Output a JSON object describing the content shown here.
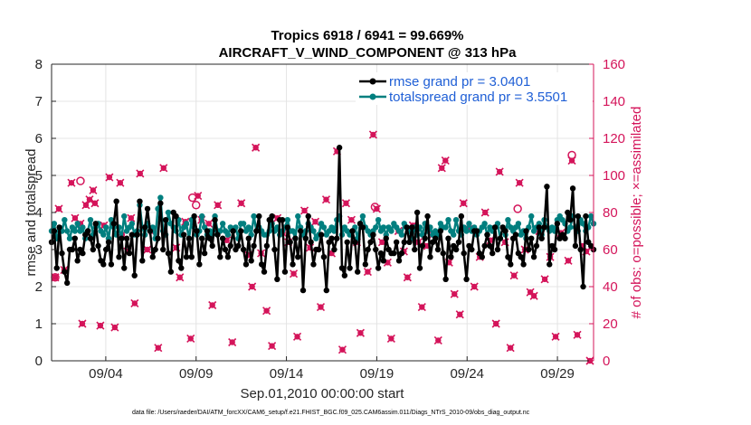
{
  "chart_data": {
    "type": "line",
    "title": "Tropics 6918 / 6941 = 99.669%",
    "subtitle": "AIRCRAFT_V_WIND_COMPONENT @ 313 hPa",
    "xlabel": "Sep.01,2010 00:00:00 start",
    "ylabel": "rmse and totalspread",
    "ylabel_right": "# of obs: o=possible; ×=assimilated",
    "xlim": [
      1,
      31
    ],
    "ylim": [
      0,
      8
    ],
    "ylim_right": [
      0,
      160
    ],
    "x_ticks": [
      4,
      9,
      14,
      19,
      24,
      29
    ],
    "x_tick_labels": [
      "09/04",
      "09/09",
      "09/14",
      "09/19",
      "09/24",
      "09/29"
    ],
    "y_ticks": [
      "0",
      "1",
      "2",
      "3",
      "4",
      "5",
      "6",
      "7",
      "8"
    ],
    "y_ticks_right": [
      "0",
      "20",
      "40",
      "60",
      "80",
      "100",
      "120",
      "140",
      "160"
    ],
    "legend": [
      {
        "name": "rmse grand pr = 3.0401",
        "color": "#000000"
      },
      {
        "name": "totalspread grand pr = 3.5501",
        "color": "#007f7f"
      }
    ],
    "footnote": "data file: /Users/raeder/DAI/ATM_forcXX/CAM6_setup/f.e21.FHIST_BGC.f09_025.CAM6assim.011/Diags_NTrS_2010-09/obs_diag_output.nc",
    "rmse": [
      3.2,
      3.5,
      2.5,
      3.6,
      2.9,
      2.4,
      2.1,
      3.0,
      3.0,
      3.3,
      2.7,
      3.0,
      2.9,
      3.4,
      3.5,
      3.3,
      3.0,
      3.7,
      3.1,
      2.7,
      2.6,
      3.0,
      3.2,
      2.6,
      3.7,
      4.3,
      2.8,
      3.3,
      2.5,
      3.3,
      2.9,
      3.4,
      2.3,
      3.4,
      4.3,
      2.7,
      3.6,
      4.1,
      3.5,
      2.8,
      3.0,
      3.3,
      3.4,
      3.0,
      3.8,
      2.9,
      2.4,
      4.0,
      3.9,
      2.7,
      2.5,
      3.4,
      2.8,
      3.3,
      2.8,
      3.9,
      3.5,
      2.6,
      3.3,
      2.9,
      3.5,
      3.3,
      3.1,
      3.8,
      3.4,
      2.8,
      3.3,
      3.0,
      2.8,
      3.1,
      3.5,
      3.0,
      3.1,
      3.5,
      3.0,
      2.6,
      3.3,
      2.7,
      3.1,
      3.5,
      3.9,
      2.6,
      2.4,
      3.1,
      3.8,
      3.9,
      3.0,
      2.2,
      3.8,
      3.8,
      2.4,
      3.6,
      3.2,
      2.6,
      3.3,
      2.8,
      3.5,
      1.9,
      3.3,
      3.9,
      3.2,
      2.6,
      3.0,
      3.0,
      3.4,
      2.8,
      1.9,
      3.2,
      3.3,
      3.0,
      3.3,
      3.1,
      2.5,
      2.3,
      3.2,
      2.5,
      3.5,
      3.2,
      2.4,
      3.7,
      3.6,
      2.6,
      3.0,
      3.2,
      3.4,
      3.0,
      2.5,
      2.9,
      2.7,
      3.3,
      3.0,
      2.9,
      2.9,
      3.2,
      2.7,
      2.9,
      3.2,
      3.6,
      3.2,
      3.6,
      3.0,
      4.0,
      2.5,
      3.1,
      3.3,
      3.9,
      2.8,
      3.2,
      3.3,
      3.0,
      3.5,
      2.9,
      2.2,
      3.3,
      2.8,
      3.1,
      3.0,
      3.2,
      3.9,
      2.9,
      2.2,
      3.1,
      3.0,
      3.5,
      3.5,
      2.9,
      2.8,
      3.1,
      3.4,
      3.1,
      2.9,
      3.6,
      3.0,
      3.3,
      3.6,
      3.5,
      2.8,
      2.6,
      3.3,
      3.4,
      2.9,
      2.8,
      2.6,
      3.5,
      3.0,
      3.3,
      2.8,
      3.1,
      3.6,
      3.3,
      3.6,
      4.7,
      2.6,
      3.1,
      3.0,
      3.7,
      3.3,
      3.4,
      3.3,
      4.0,
      3.8,
      3.4,
      3.1,
      3.9,
      3.0,
      2.0,
      3.9,
      3.2,
      3.1,
      3.0
    ],
    "totalspread": [
      3.5,
      3.7,
      3.3,
      3.5,
      3.5,
      3.8,
      3.5,
      3.3,
      3.6,
      3.5,
      3.7,
      3.5,
      3.6,
      3.3,
      3.5,
      3.8,
      3.4,
      3.6,
      3.7,
      3.5,
      3.4,
      3.6,
      3.3,
      3.8,
      3.6,
      3.4,
      3.6,
      3.3,
      3.9,
      3.5,
      3.6,
      3.7,
      3.4,
      3.5,
      4.2,
      3.6,
      3.4,
      3.7,
      3.5,
      3.6,
      3.3,
      4.1,
      3.6,
      3.5,
      3.4,
      4.0,
      3.7,
      3.6,
      3.5,
      3.8,
      3.4,
      3.6,
      3.7,
      3.3,
      3.8,
      3.6,
      3.4,
      3.5,
      3.9,
      3.6,
      3.4,
      3.5,
      3.4,
      3.9,
      3.5,
      3.5,
      3.7,
      3.5,
      3.4,
      3.6,
      3.5,
      3.6,
      3.3,
      3.7,
      3.7,
      3.5,
      3.6,
      3.4,
      3.9,
      3.5,
      3.6,
      3.5,
      3.4,
      3.4,
      3.5,
      3.7,
      3.5,
      3.6,
      3.4,
      3.5,
      3.6,
      3.8,
      3.5,
      3.5,
      3.3,
      3.9,
      3.6,
      3.4,
      3.5,
      3.7,
      3.6,
      3.5,
      3.3,
      3.4,
      3.7,
      3.6,
      3.4,
      3.5,
      3.6,
      3.5,
      3.8,
      3.7,
      3.4,
      3.6,
      3.5,
      3.4,
      3.5,
      3.6,
      3.3,
      3.7,
      3.9,
      3.6,
      3.5,
      3.4,
      3.5,
      3.6,
      3.8,
      3.5,
      3.6,
      3.4,
      3.6,
      3.5,
      3.7,
      3.6,
      3.5,
      3.4,
      3.7,
      3.6,
      3.5,
      3.3,
      3.6,
      3.4,
      3.6,
      3.4,
      3.7,
      3.5,
      3.6,
      3.4,
      3.5,
      3.4,
      3.7,
      3.6,
      3.6,
      3.8,
      3.5,
      3.4,
      3.8,
      3.5,
      3.4,
      3.6,
      3.5,
      3.7,
      3.5,
      3.6,
      3.4,
      3.5,
      3.6,
      3.7,
      3.4,
      3.6,
      3.5,
      3.6,
      3.7,
      3.3,
      3.6,
      3.4,
      3.8,
      3.6,
      3.5,
      3.6,
      3.7,
      3.4,
      3.5,
      3.3,
      3.6,
      3.9,
      3.5,
      3.6,
      3.7,
      3.4,
      3.8,
      3.6,
      3.5,
      3.6,
      3.5,
      3.8,
      3.9,
      3.8,
      3.7,
      3.5,
      3.6,
      3.4,
      3.6,
      3.5,
      3.8,
      3.7,
      3.5,
      3.6,
      3.9,
      3.7
    ],
    "spikes": [
      {
        "x": 7.0,
        "rmse": 4.25,
        "spread": 4.4
      },
      {
        "x": 17.0,
        "rmse": 5.75,
        "spread": 3.9
      },
      {
        "x": 29.8,
        "rmse": 4.65,
        "spread": 3.9
      }
    ],
    "obs_possible": [
      {
        "x": 1.2,
        "y": 45
      },
      {
        "x": 2.6,
        "y": 97
      },
      {
        "x": 8.8,
        "y": 88
      },
      {
        "x": 9.0,
        "y": 84
      },
      {
        "x": 18.9,
        "y": 83
      },
      {
        "x": 26.8,
        "y": 82
      },
      {
        "x": 29.8,
        "y": 111
      }
    ],
    "obs_assimilated": [
      {
        "x": 1.2,
        "y": 45
      },
      {
        "x": 1.4,
        "y": 82
      },
      {
        "x": 1.7,
        "y": 49
      },
      {
        "x": 2.1,
        "y": 96
      },
      {
        "x": 2.3,
        "y": 77
      },
      {
        "x": 2.6,
        "y": 74
      },
      {
        "x": 2.7,
        "y": 20
      },
      {
        "x": 2.9,
        "y": 84
      },
      {
        "x": 3.1,
        "y": 87
      },
      {
        "x": 3.3,
        "y": 92
      },
      {
        "x": 3.4,
        "y": 85
      },
      {
        "x": 3.7,
        "y": 19
      },
      {
        "x": 3.9,
        "y": 73
      },
      {
        "x": 4.2,
        "y": 99
      },
      {
        "x": 4.5,
        "y": 18
      },
      {
        "x": 4.8,
        "y": 96
      },
      {
        "x": 4.9,
        "y": 68
      },
      {
        "x": 5.2,
        "y": 59
      },
      {
        "x": 5.4,
        "y": 77
      },
      {
        "x": 5.6,
        "y": 31
      },
      {
        "x": 5.9,
        "y": 101
      },
      {
        "x": 6.3,
        "y": 60
      },
      {
        "x": 6.6,
        "y": 70
      },
      {
        "x": 6.9,
        "y": 7
      },
      {
        "x": 7.2,
        "y": 104
      },
      {
        "x": 7.9,
        "y": 61
      },
      {
        "x": 8.1,
        "y": 45
      },
      {
        "x": 8.4,
        "y": 75
      },
      {
        "x": 8.7,
        "y": 12
      },
      {
        "x": 9.1,
        "y": 89
      },
      {
        "x": 9.3,
        "y": 76
      },
      {
        "x": 9.7,
        "y": 74
      },
      {
        "x": 9.9,
        "y": 30
      },
      {
        "x": 10.2,
        "y": 84
      },
      {
        "x": 10.7,
        "y": 65
      },
      {
        "x": 11.0,
        "y": 10
      },
      {
        "x": 11.5,
        "y": 85
      },
      {
        "x": 11.9,
        "y": 57
      },
      {
        "x": 12.1,
        "y": 40
      },
      {
        "x": 12.3,
        "y": 115
      },
      {
        "x": 12.6,
        "y": 58
      },
      {
        "x": 12.9,
        "y": 27
      },
      {
        "x": 13.2,
        "y": 8
      },
      {
        "x": 13.5,
        "y": 77
      },
      {
        "x": 13.8,
        "y": 69
      },
      {
        "x": 14.1,
        "y": 64
      },
      {
        "x": 14.4,
        "y": 47
      },
      {
        "x": 14.6,
        "y": 13
      },
      {
        "x": 15.0,
        "y": 81
      },
      {
        "x": 15.3,
        "y": 61
      },
      {
        "x": 15.6,
        "y": 75
      },
      {
        "x": 15.9,
        "y": 29
      },
      {
        "x": 16.2,
        "y": 87
      },
      {
        "x": 16.5,
        "y": 58
      },
      {
        "x": 16.8,
        "y": 113
      },
      {
        "x": 17.1,
        "y": 6
      },
      {
        "x": 17.3,
        "y": 85
      },
      {
        "x": 17.6,
        "y": 76
      },
      {
        "x": 17.9,
        "y": 64
      },
      {
        "x": 18.1,
        "y": 15
      },
      {
        "x": 18.5,
        "y": 48
      },
      {
        "x": 18.8,
        "y": 122
      },
      {
        "x": 19.0,
        "y": 82
      },
      {
        "x": 19.3,
        "y": 64
      },
      {
        "x": 19.6,
        "y": 53
      },
      {
        "x": 19.8,
        "y": 12
      },
      {
        "x": 20.2,
        "y": 70
      },
      {
        "x": 20.5,
        "y": 59
      },
      {
        "x": 20.7,
        "y": 45
      },
      {
        "x": 21.0,
        "y": 73
      },
      {
        "x": 21.3,
        "y": 64
      },
      {
        "x": 21.5,
        "y": 29
      },
      {
        "x": 21.8,
        "y": 62
      },
      {
        "x": 22.1,
        "y": 68
      },
      {
        "x": 22.4,
        "y": 11
      },
      {
        "x": 22.6,
        "y": 104
      },
      {
        "x": 22.8,
        "y": 108
      },
      {
        "x": 23.0,
        "y": 53
      },
      {
        "x": 23.3,
        "y": 36
      },
      {
        "x": 23.6,
        "y": 25
      },
      {
        "x": 23.8,
        "y": 85
      },
      {
        "x": 24.1,
        "y": 71
      },
      {
        "x": 24.4,
        "y": 40
      },
      {
        "x": 24.7,
        "y": 56
      },
      {
        "x": 25.0,
        "y": 80
      },
      {
        "x": 25.3,
        "y": 65
      },
      {
        "x": 25.6,
        "y": 20
      },
      {
        "x": 25.8,
        "y": 102
      },
      {
        "x": 26.1,
        "y": 64
      },
      {
        "x": 26.4,
        "y": 7
      },
      {
        "x": 26.6,
        "y": 46
      },
      {
        "x": 26.9,
        "y": 96
      },
      {
        "x": 27.2,
        "y": 60
      },
      {
        "x": 27.5,
        "y": 37
      },
      {
        "x": 27.7,
        "y": 35
      },
      {
        "x": 28.0,
        "y": 70
      },
      {
        "x": 28.3,
        "y": 44
      },
      {
        "x": 28.6,
        "y": 56
      },
      {
        "x": 28.9,
        "y": 13
      },
      {
        "x": 29.2,
        "y": 69
      },
      {
        "x": 29.6,
        "y": 54
      },
      {
        "x": 29.8,
        "y": 108
      },
      {
        "x": 30.1,
        "y": 14
      },
      {
        "x": 30.4,
        "y": 62
      },
      {
        "x": 30.6,
        "y": 59
      },
      {
        "x": 30.8,
        "y": 0
      }
    ]
  }
}
